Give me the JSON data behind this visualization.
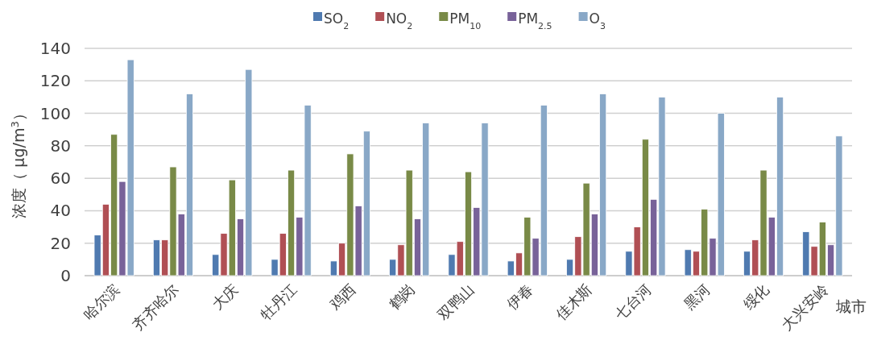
{
  "chart_data": {
    "type": "bar",
    "categories": [
      "哈尔滨",
      "齐齐哈尔",
      "大庆",
      "牡丹江",
      "鸡西",
      "鹤岗",
      "双鸭山",
      "伊春",
      "佳木斯",
      "七台河",
      "黑河",
      "绥化",
      "大兴安岭"
    ],
    "series": [
      {
        "name": "SO$_{2}$",
        "color": "#4f7ab0",
        "values": [
          25,
          22,
          13,
          10,
          9,
          10,
          13,
          9,
          10,
          15,
          16,
          15,
          27
        ]
      },
      {
        "name": "NO$_{2}$",
        "color": "#b04f54",
        "values": [
          44,
          22,
          26,
          26,
          20,
          19,
          21,
          14,
          24,
          30,
          15,
          22,
          18
        ]
      },
      {
        "name": "PM$_{10}$",
        "color": "#798a47",
        "values": [
          87,
          67,
          59,
          65,
          75,
          65,
          64,
          36,
          57,
          84,
          41,
          65,
          33
        ]
      },
      {
        "name": "PM$_{2.5}$",
        "color": "#786299",
        "values": [
          58,
          38,
          35,
          36,
          43,
          35,
          42,
          23,
          38,
          47,
          23,
          36,
          19
        ]
      },
      {
        "name": "O$_{3}$",
        "color": "#89a8c7",
        "values": [
          133,
          112,
          127,
          105,
          89,
          94,
          94,
          105,
          112,
          110,
          100,
          110,
          86
        ]
      }
    ],
    "xlabel": "城市",
    "ylabel": "浓度（ μg/m$^{3}$）",
    "ylim": [
      0,
      140
    ],
    "yticks": [
      0,
      20,
      40,
      60,
      80,
      100,
      120,
      140
    ],
    "grid": "y",
    "legend": "top"
  }
}
